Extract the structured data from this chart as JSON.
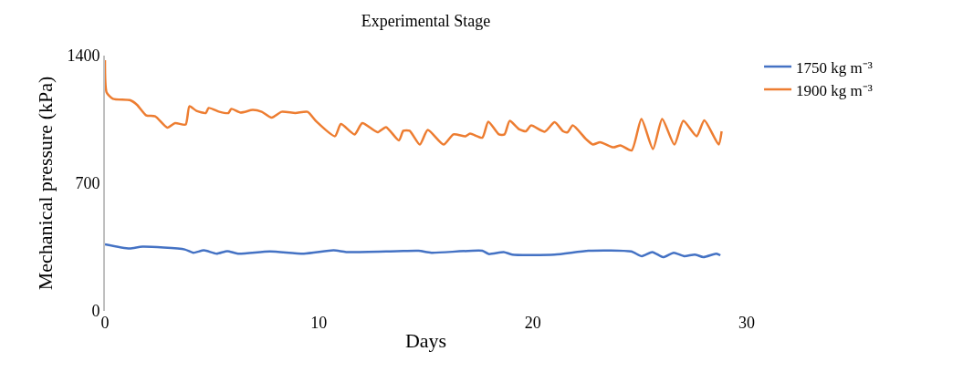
{
  "chart_data": {
    "type": "line",
    "title": "Experimental Stage",
    "xlabel": "Days",
    "ylabel": "Mechanical pressure (kPa)",
    "xlim": [
      0,
      30
    ],
    "xticks": [
      0,
      10,
      20,
      30
    ],
    "ylim": [
      0,
      1400
    ],
    "yticks": [
      0,
      700,
      1400
    ],
    "legend": "top right",
    "marker": "none",
    "line_style": "solid",
    "series": [
      {
        "name": "1750 kg m⁻³",
        "color": "#4472c4",
        "x": [
          0,
          1.15,
          1.75,
          3.73,
          4.13,
          4.63,
          5.22,
          5.72,
          6.22,
          7.71,
          9.3,
          10.69,
          11.28,
          13.67,
          14.66,
          15.26,
          17.64,
          17.94,
          18.64,
          19.04,
          21.02,
          22.61,
          24.6,
          25.1,
          25.59,
          26.09,
          26.59,
          27.08,
          27.58,
          27.98,
          28.58,
          28.77
        ],
        "values": [
          365,
          342,
          352,
          337,
          319,
          332,
          314,
          328,
          314,
          326,
          314,
          332,
          323,
          328,
          330,
          319,
          330,
          312,
          323,
          309,
          309,
          330,
          326,
          300,
          323,
          295,
          319,
          300,
          309,
          295,
          314,
          305
        ]
      },
      {
        "name": "1900 kg m⁻³",
        "color": "#ed7d31",
        "x": [
          0,
          0.08,
          0.37,
          1.19,
          1.5,
          1.93,
          2.35,
          2.92,
          3.28,
          3.77,
          3.95,
          4.28,
          4.71,
          4.85,
          5.35,
          5.77,
          5.91,
          6.34,
          6.91,
          7.33,
          7.79,
          8.26,
          8.9,
          9.47,
          9.89,
          10.75,
          11.03,
          11.67,
          12.03,
          12.74,
          13.14,
          13.74,
          13.95,
          14.24,
          14.72,
          15.09,
          15.83,
          16.29,
          16.86,
          17.07,
          17.64,
          17.92,
          18.42,
          18.68,
          18.92,
          19.35,
          19.68,
          19.92,
          20.56,
          21.02,
          21.42,
          21.63,
          21.87,
          22.49,
          22.81,
          23.15,
          23.77,
          24.1,
          24.62,
          25.08,
          25.62,
          26.05,
          26.62,
          27.04,
          27.66,
          28.02,
          28.69,
          28.83
        ],
        "values": [
          1375,
          1197,
          1163,
          1155,
          1130,
          1072,
          1067,
          1005,
          1030,
          1022,
          1122,
          1097,
          1085,
          1113,
          1092,
          1085,
          1108,
          1088,
          1102,
          1092,
          1060,
          1092,
          1085,
          1092,
          1038,
          958,
          1025,
          968,
          1030,
          980,
          1008,
          935,
          988,
          988,
          912,
          992,
          912,
          968,
          958,
          972,
          950,
          1038,
          968,
          968,
          1042,
          997,
          985,
          1017,
          983,
          1035,
          985,
          980,
          1017,
          942,
          913,
          925,
          897,
          908,
          880,
          1053,
          888,
          1053,
          912,
          1042,
          958,
          1045,
          913,
          985
        ]
      }
    ]
  }
}
